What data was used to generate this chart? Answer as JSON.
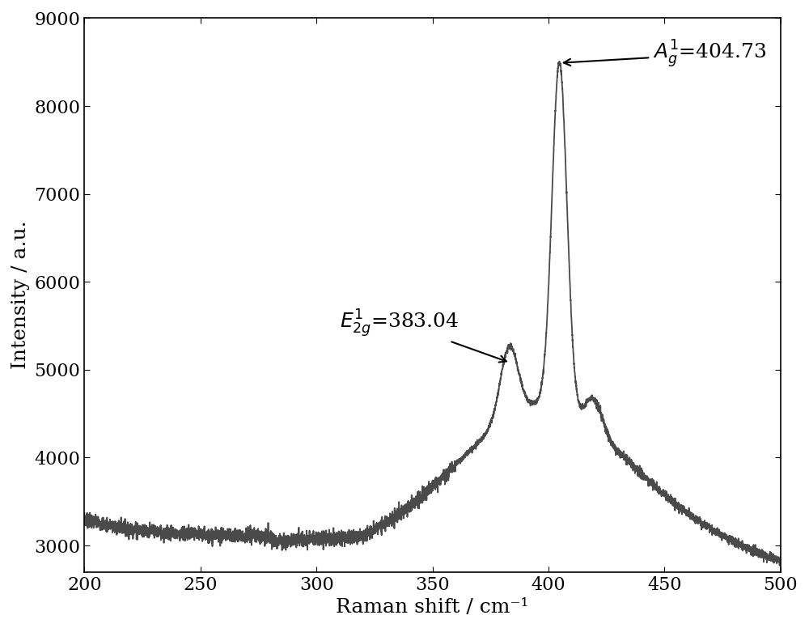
{
  "xlabel": "Raman shift / cm⁻¹",
  "ylabel": "Intensity / a.u.",
  "xlim": [
    200,
    500
  ],
  "ylim": [
    2700,
    9000
  ],
  "yticks": [
    3000,
    4000,
    5000,
    6000,
    7000,
    8000,
    9000
  ],
  "xticks": [
    200,
    250,
    300,
    350,
    400,
    450,
    500
  ],
  "line_color": "#4a4a4a",
  "line_width": 1.3,
  "bg_color": "#ffffff",
  "peak1_x": 404.73,
  "peak1_y": 8500,
  "peak2_x": 383.04,
  "peak2_y": 5100,
  "fontsize_label": 18,
  "fontsize_tick": 16,
  "fontsize_annot": 18
}
